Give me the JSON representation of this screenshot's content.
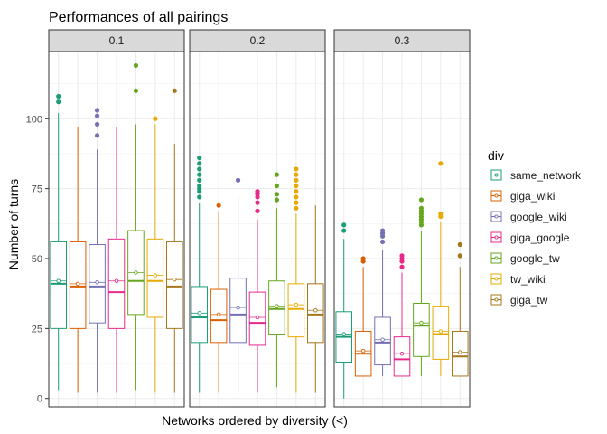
{
  "chart_data": {
    "type": "boxplot",
    "title": "Performances of all pairings",
    "xlabel": "Networks ordered by diversity (<)",
    "ylabel": "Number of turns",
    "ylim": [
      -3,
      124
    ],
    "yticks": [
      0,
      25,
      50,
      75,
      100
    ],
    "facets": [
      "0.1",
      "0.2",
      "0.3"
    ],
    "legend": {
      "title": "div",
      "position": "right"
    },
    "grid": true,
    "series": [
      {
        "name": "same_network",
        "color": "#1B9E77"
      },
      {
        "name": "giga_wiki",
        "color": "#D95F02"
      },
      {
        "name": "google_wiki",
        "color": "#7570B3"
      },
      {
        "name": "giga_google",
        "color": "#E7298A"
      },
      {
        "name": "google_tw",
        "color": "#66A61E"
      },
      {
        "name": "tw_wiki",
        "color": "#E6AB02"
      },
      {
        "name": "giga_tw",
        "color": "#A6761D"
      }
    ],
    "boxes": [
      [
        {
          "min": 3,
          "q1": 25,
          "median": 41,
          "q3": 56,
          "max": 102,
          "mean": 42,
          "outliers": [
            106,
            108
          ]
        },
        {
          "min": 2,
          "q1": 25,
          "median": 40,
          "q3": 56,
          "max": 97,
          "mean": 41,
          "outliers": []
        },
        {
          "min": 2,
          "q1": 27,
          "median": 40,
          "q3": 55,
          "max": 89,
          "mean": 41.5,
          "outliers": [
            94,
            98,
            101,
            103
          ]
        },
        {
          "min": 2,
          "q1": 25,
          "median": 38,
          "q3": 57,
          "max": 97,
          "mean": 42,
          "outliers": []
        },
        {
          "min": 3,
          "q1": 30,
          "median": 42,
          "q3": 60,
          "max": 98,
          "mean": 45,
          "outliers": [
            110,
            119
          ]
        },
        {
          "min": 2,
          "q1": 29,
          "median": 42,
          "q3": 57,
          "max": 98,
          "mean": 44,
          "outliers": [
            100
          ]
        },
        {
          "min": 2,
          "q1": 25,
          "median": 40,
          "q3": 56,
          "max": 91,
          "mean": 42.5,
          "outliers": [
            110
          ]
        }
      ],
      [
        {
          "min": 2,
          "q1": 20,
          "median": 29,
          "q3": 40,
          "max": 70,
          "mean": 30.5,
          "outliers": [
            72,
            74,
            75,
            76,
            78,
            80,
            82,
            84,
            86
          ]
        },
        {
          "min": 2,
          "q1": 20,
          "median": 28,
          "q3": 39,
          "max": 67,
          "mean": 30,
          "outliers": [
            69
          ]
        },
        {
          "min": 2,
          "q1": 20,
          "median": 30,
          "q3": 43,
          "max": 72,
          "mean": 32.5,
          "outliers": [
            78
          ]
        },
        {
          "min": 2,
          "q1": 19,
          "median": 27,
          "q3": 38,
          "max": 64,
          "mean": 29,
          "outliers": [
            67,
            70,
            72,
            73,
            74
          ]
        },
        {
          "min": 4,
          "q1": 23,
          "median": 32,
          "q3": 42,
          "max": 68,
          "mean": 33,
          "outliers": [
            71,
            73,
            76,
            80
          ]
        },
        {
          "min": 2,
          "q1": 22,
          "median": 32,
          "q3": 41,
          "max": 66,
          "mean": 33.5,
          "outliers": [
            68,
            70,
            72,
            74,
            76,
            78,
            80,
            82
          ]
        },
        {
          "min": 2,
          "q1": 20,
          "median": 30,
          "q3": 41,
          "max": 69,
          "mean": 31.5,
          "outliers": []
        }
      ],
      [
        {
          "min": 0,
          "q1": 13,
          "median": 22,
          "q3": 31,
          "max": 57,
          "mean": 23,
          "outliers": [
            60,
            62
          ]
        },
        {
          "min": 8,
          "q1": 8,
          "median": 16,
          "q3": 24,
          "max": 47,
          "mean": 17,
          "outliers": [
            49,
            50
          ]
        },
        {
          "min": 8,
          "q1": 12,
          "median": 20,
          "q3": 29,
          "max": 53,
          "mean": 21,
          "outliers": [
            56,
            58,
            59,
            60
          ]
        },
        {
          "min": 8,
          "q1": 8,
          "median": 14,
          "q3": 22,
          "max": 45,
          "mean": 16,
          "outliers": [
            47,
            49,
            50,
            51
          ]
        },
        {
          "min": 8,
          "q1": 15,
          "median": 26,
          "q3": 34,
          "max": 60,
          "mean": 27,
          "outliers": [
            62,
            63,
            64,
            65,
            66,
            67,
            68,
            71
          ]
        },
        {
          "min": 8,
          "q1": 14,
          "median": 23,
          "q3": 33,
          "max": 63,
          "mean": 24,
          "outliers": [
            65,
            66,
            84
          ]
        },
        {
          "min": 8,
          "q1": 8,
          "median": 15,
          "q3": 24,
          "max": 47,
          "mean": 16.5,
          "outliers": [
            51,
            55
          ]
        }
      ]
    ]
  }
}
